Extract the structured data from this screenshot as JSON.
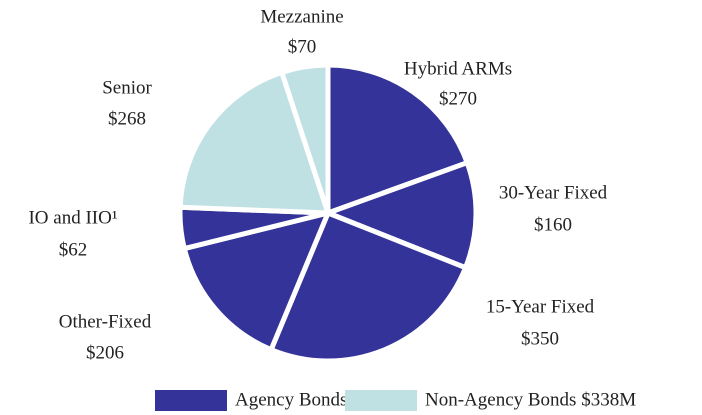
{
  "chart_data": {
    "type": "pie",
    "categories": [
      "Hybrid ARMs",
      "30-Year Fixed",
      "15-Year Fixed",
      "Other-Fixed",
      "IO and IIO¹",
      "Senior",
      "Mezzanine"
    ],
    "values": [
      270,
      160,
      350,
      206,
      62,
      268,
      70
    ],
    "value_labels": [
      "$270",
      "$160",
      "$350",
      "$206",
      "$62",
      "$268",
      "$70"
    ],
    "colors": [
      "#333399",
      "#333399",
      "#333399",
      "#333399",
      "#333399",
      "#bfe1e4",
      "#bfe1e4"
    ],
    "legend": [
      {
        "name": "Agency Bonds $1.0B",
        "color": "#333399"
      },
      {
        "name": "Non-Agency Bonds $338M",
        "color": "#bfe1e4"
      }
    ]
  }
}
